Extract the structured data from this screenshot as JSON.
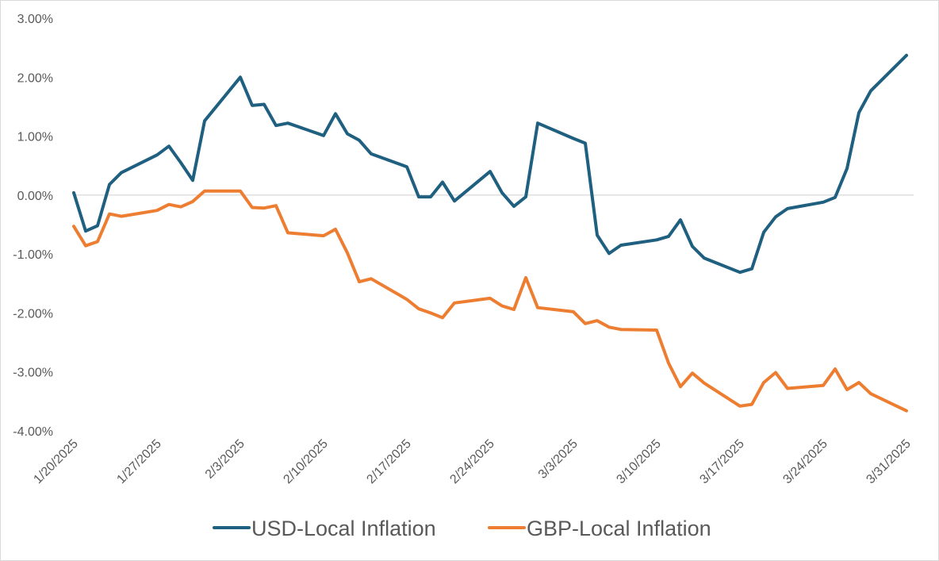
{
  "chart_data": {
    "type": "line",
    "title": "",
    "xlabel": "",
    "ylabel": "",
    "ylim": [
      -0.04,
      0.03
    ],
    "y_ticks": [
      0.03,
      0.02,
      0.01,
      0.0,
      -0.01,
      -0.02,
      -0.03,
      -0.04
    ],
    "y_tick_labels": [
      "3.00%",
      "2.00%",
      "1.00%",
      "0.00%",
      "-1.00%",
      "-2.00%",
      "-3.00%",
      "-4.00%"
    ],
    "x_range": [
      "2025-01-20",
      "2025-03-31"
    ],
    "x_ticks": [
      "2025-01-20",
      "2025-01-27",
      "2025-02-03",
      "2025-02-10",
      "2025-02-17",
      "2025-02-24",
      "2025-03-03",
      "2025-03-10",
      "2025-03-17",
      "2025-03-24",
      "2025-03-31"
    ],
    "x_tick_labels": [
      "1/20/2025",
      "1/27/2025",
      "2/3/2025",
      "2/10/2025",
      "2/17/2025",
      "2/24/2025",
      "3/3/2025",
      "3/10/2025",
      "3/17/2025",
      "3/24/2025",
      "3/31/2025"
    ],
    "zero_line": true,
    "grid": false,
    "legend_position": "bottom",
    "series": [
      {
        "name": "USD-Local Inflation",
        "color": "#1f5f7f",
        "points": [
          [
            "2025-01-20",
            0.0004
          ],
          [
            "2025-01-21",
            -0.0061
          ],
          [
            "2025-01-22",
            -0.0052
          ],
          [
            "2025-01-23",
            0.0018
          ],
          [
            "2025-01-24",
            0.0038
          ],
          [
            "2025-01-27",
            0.0068
          ],
          [
            "2025-01-28",
            0.0083
          ],
          [
            "2025-01-29",
            0.0055
          ],
          [
            "2025-01-30",
            0.0025
          ],
          [
            "2025-01-31",
            0.0126
          ],
          [
            "2025-02-03",
            0.02
          ],
          [
            "2025-02-04",
            0.0152
          ],
          [
            "2025-02-05",
            0.0154
          ],
          [
            "2025-02-06",
            0.0118
          ],
          [
            "2025-02-07",
            0.0122
          ],
          [
            "2025-02-10",
            0.0101
          ],
          [
            "2025-02-11",
            0.0138
          ],
          [
            "2025-02-12",
            0.0104
          ],
          [
            "2025-02-13",
            0.0093
          ],
          [
            "2025-02-14",
            0.007
          ],
          [
            "2025-02-17",
            0.0048
          ],
          [
            "2025-02-18",
            -0.0003
          ],
          [
            "2025-02-19",
            -0.0003
          ],
          [
            "2025-02-20",
            0.0022
          ],
          [
            "2025-02-21",
            -0.001
          ],
          [
            "2025-02-24",
            0.004
          ],
          [
            "2025-02-25",
            0.0004
          ],
          [
            "2025-02-26",
            -0.0019
          ],
          [
            "2025-02-27",
            -0.0003
          ],
          [
            "2025-02-28",
            0.0122
          ],
          [
            "2025-03-03",
            0.0096
          ],
          [
            "2025-03-04",
            0.0088
          ],
          [
            "2025-03-05",
            -0.0068
          ],
          [
            "2025-03-06",
            -0.0099
          ],
          [
            "2025-03-07",
            -0.0085
          ],
          [
            "2025-03-10",
            -0.0076
          ],
          [
            "2025-03-11",
            -0.007
          ],
          [
            "2025-03-12",
            -0.0042
          ],
          [
            "2025-03-13",
            -0.0087
          ],
          [
            "2025-03-14",
            -0.0107
          ],
          [
            "2025-03-17",
            -0.0131
          ],
          [
            "2025-03-18",
            -0.0125
          ],
          [
            "2025-03-19",
            -0.0063
          ],
          [
            "2025-03-20",
            -0.0037
          ],
          [
            "2025-03-21",
            -0.0023
          ],
          [
            "2025-03-24",
            -0.0012
          ],
          [
            "2025-03-25",
            -0.0004
          ],
          [
            "2025-03-26",
            0.0045
          ],
          [
            "2025-03-27",
            0.014
          ],
          [
            "2025-03-28",
            0.0177
          ],
          [
            "2025-03-31",
            0.0237
          ]
        ]
      },
      {
        "name": "GBP-Local Inflation",
        "color": "#ed7d31",
        "points": [
          [
            "2025-01-20",
            -0.0053
          ],
          [
            "2025-01-21",
            -0.0086
          ],
          [
            "2025-01-22",
            -0.0079
          ],
          [
            "2025-01-23",
            -0.0032
          ],
          [
            "2025-01-24",
            -0.0036
          ],
          [
            "2025-01-27",
            -0.0026
          ],
          [
            "2025-01-28",
            -0.0016
          ],
          [
            "2025-01-29",
            -0.002
          ],
          [
            "2025-01-30",
            -0.0011
          ],
          [
            "2025-01-31",
            0.0007
          ],
          [
            "2025-02-03",
            0.0007
          ],
          [
            "2025-02-04",
            -0.0021
          ],
          [
            "2025-02-05",
            -0.0022
          ],
          [
            "2025-02-06",
            -0.0018
          ],
          [
            "2025-02-07",
            -0.0064
          ],
          [
            "2025-02-10",
            -0.0069
          ],
          [
            "2025-02-11",
            -0.0058
          ],
          [
            "2025-02-12",
            -0.0098
          ],
          [
            "2025-02-13",
            -0.0147
          ],
          [
            "2025-02-14",
            -0.0142
          ],
          [
            "2025-02-17",
            -0.0177
          ],
          [
            "2025-02-18",
            -0.0193
          ],
          [
            "2025-02-19",
            -0.02
          ],
          [
            "2025-02-20",
            -0.0208
          ],
          [
            "2025-02-21",
            -0.0183
          ],
          [
            "2025-02-24",
            -0.0175
          ],
          [
            "2025-02-25",
            -0.0188
          ],
          [
            "2025-02-26",
            -0.0194
          ],
          [
            "2025-02-27",
            -0.014
          ],
          [
            "2025-02-28",
            -0.0191
          ],
          [
            "2025-03-03",
            -0.0198
          ],
          [
            "2025-03-04",
            -0.0218
          ],
          [
            "2025-03-05",
            -0.0213
          ],
          [
            "2025-03-06",
            -0.0224
          ],
          [
            "2025-03-07",
            -0.0228
          ],
          [
            "2025-03-10",
            -0.0229
          ],
          [
            "2025-03-11",
            -0.0285
          ],
          [
            "2025-03-12",
            -0.0325
          ],
          [
            "2025-03-13",
            -0.0302
          ],
          [
            "2025-03-14",
            -0.0319
          ],
          [
            "2025-03-17",
            -0.0358
          ],
          [
            "2025-03-18",
            -0.0355
          ],
          [
            "2025-03-19",
            -0.0318
          ],
          [
            "2025-03-20",
            -0.0301
          ],
          [
            "2025-03-21",
            -0.0328
          ],
          [
            "2025-03-24",
            -0.0323
          ],
          [
            "2025-03-25",
            -0.0295
          ],
          [
            "2025-03-26",
            -0.033
          ],
          [
            "2025-03-27",
            -0.0318
          ],
          [
            "2025-03-28",
            -0.0337
          ],
          [
            "2025-03-31",
            -0.0366
          ]
        ]
      }
    ]
  }
}
